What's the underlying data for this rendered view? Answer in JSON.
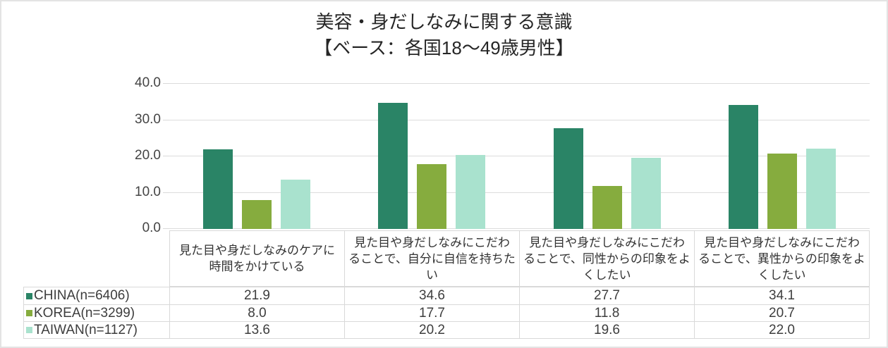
{
  "chart_data": {
    "type": "bar",
    "title": "美容・身だしなみに関する意識",
    "subtitle": "【ベース：各国18～49歳男性】",
    "categories": [
      "見た目や身だしなみのケアに時間をかけている",
      "見た目や身だしなみにこだわることで、自分に自信を持ちたい",
      "見た目や身だしなみにこだわることで、同性からの印象をよくしたい",
      "見た目や身だしなみにこだわることで、異性からの印象をよくしたい"
    ],
    "series": [
      {
        "name": "CHINA(n=6406)",
        "key": "china",
        "color": "#2a8466",
        "values": [
          21.9,
          34.6,
          27.7,
          34.1
        ]
      },
      {
        "name": "KOREA(n=3299)",
        "key": "korea",
        "color": "#86ac3e",
        "values": [
          8.0,
          17.7,
          11.8,
          20.7
        ]
      },
      {
        "name": "TAIWAN(n=1127)",
        "key": "taiwan",
        "color": "#a9e2ce",
        "values": [
          13.6,
          20.2,
          19.6,
          22.0
        ]
      }
    ],
    "ylim": [
      0,
      40
    ],
    "yticks": [
      "40.0",
      "30.0",
      "20.0",
      "10.0",
      "0.0"
    ],
    "grid": true,
    "legend_position": "table-left",
    "value_format": "one-decimal"
  },
  "colors": {
    "gridline": "#dcdcdc",
    "table_border": "#d9d9d9",
    "axis_text": "#444444",
    "title_text": "#262626",
    "frame_border": "#e3e3e3"
  }
}
